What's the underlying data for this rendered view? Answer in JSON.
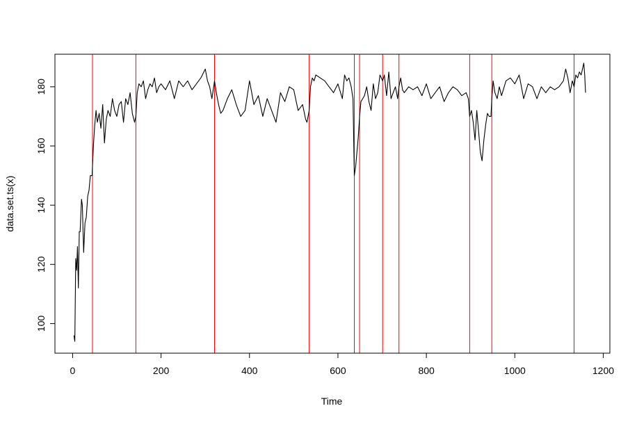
{
  "chart_data": {
    "type": "line",
    "title": "",
    "xlabel": "Time",
    "ylabel": "data.set.ts(x)",
    "xlim": [
      -40,
      1215
    ],
    "ylim": [
      90,
      191
    ],
    "x_ticks": [
      0,
      200,
      400,
      600,
      800,
      1000,
      1200
    ],
    "y_ticks": [
      100,
      120,
      140,
      160,
      180
    ],
    "grid": false,
    "legend": "none",
    "line_color": "#000000",
    "changepoint_color": "#ff0000",
    "changepoints": [
      45,
      143,
      321,
      535,
      637,
      649,
      701,
      738,
      898,
      948,
      1134
    ],
    "series": [
      {
        "x": [
          3,
          5,
          7,
          9,
          11,
          13,
          15,
          17,
          20,
          22,
          25,
          28,
          31,
          34,
          37,
          40,
          44,
          47,
          50,
          53,
          56,
          60,
          64,
          68,
          72,
          76,
          80,
          85,
          90,
          95,
          100,
          105,
          110,
          115,
          120,
          125,
          130,
          135,
          140,
          143,
          146,
          150,
          155,
          160,
          165,
          170,
          175,
          180,
          185,
          190,
          195,
          200,
          210,
          220,
          230,
          240,
          250,
          260,
          270,
          280,
          290,
          300,
          305,
          310,
          315,
          321,
          325,
          330,
          335,
          340,
          350,
          360,
          370,
          380,
          390,
          400,
          410,
          420,
          430,
          440,
          450,
          460,
          470,
          480,
          490,
          500,
          510,
          520,
          527,
          530,
          535,
          538,
          542,
          546,
          550,
          560,
          570,
          580,
          590,
          600,
          610,
          615,
          620,
          625,
          630,
          634,
          637,
          640,
          643,
          646,
          649,
          652,
          656,
          660,
          665,
          670,
          675,
          680,
          685,
          690,
          695,
          701,
          705,
          710,
          715,
          720,
          725,
          730,
          735,
          738,
          742,
          746,
          750,
          760,
          770,
          780,
          790,
          800,
          810,
          820,
          830,
          840,
          850,
          860,
          870,
          880,
          890,
          895,
          898,
          902,
          906,
          910,
          914,
          918,
          922,
          926,
          930,
          934,
          938,
          942,
          946,
          948,
          951,
          955,
          960,
          965,
          970,
          980,
          990,
          1000,
          1010,
          1020,
          1030,
          1040,
          1050,
          1060,
          1070,
          1080,
          1090,
          1100,
          1110,
          1115,
          1120,
          1125,
          1130,
          1134,
          1138,
          1142,
          1146,
          1150,
          1153,
          1156,
          1158,
          1160
        ],
        "y": [
          96,
          94,
          122,
          118,
          126,
          112,
          131,
          131,
          142,
          140,
          124,
          134,
          136,
          143,
          145,
          150,
          150,
          160,
          167,
          172,
          168,
          171,
          166,
          174,
          161,
          169,
          172,
          170,
          176,
          172,
          170,
          174,
          175,
          168,
          176,
          174,
          178,
          171,
          168,
          170,
          178,
          181,
          180,
          182,
          176,
          179,
          181,
          180,
          183,
          178,
          180,
          181,
          179,
          182,
          176,
          182,
          180,
          182,
          179,
          181,
          183,
          186,
          182,
          180,
          176,
          182,
          178,
          174,
          171,
          172,
          176,
          179,
          174,
          170,
          172,
          182,
          174,
          177,
          170,
          176,
          172,
          168,
          178,
          175,
          180,
          179,
          172,
          174,
          169,
          168,
          172,
          180,
          183,
          182,
          184,
          183,
          182,
          180,
          178,
          181,
          176,
          184,
          182,
          183,
          180,
          176,
          150,
          153,
          158,
          163,
          170,
          175,
          176,
          177,
          180,
          175,
          172,
          181,
          176,
          178,
          184,
          182,
          184,
          177,
          185,
          176,
          178,
          180,
          176,
          180,
          183,
          179,
          178,
          180,
          179,
          180,
          177,
          181,
          176,
          178,
          180,
          175,
          178,
          180,
          179,
          177,
          178,
          176,
          170,
          172,
          168,
          162,
          172,
          165,
          158,
          155,
          162,
          167,
          171,
          170,
          170,
          176,
          182,
          178,
          176,
          180,
          177,
          182,
          183,
          181,
          184,
          176,
          181,
          180,
          176,
          180,
          178,
          180,
          179,
          180,
          182,
          186,
          183,
          178,
          182,
          180,
          184,
          183,
          185,
          184,
          186,
          188,
          184,
          178
        ]
      }
    ]
  }
}
